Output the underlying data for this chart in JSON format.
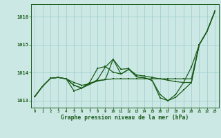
{
  "x": [
    0,
    1,
    2,
    3,
    4,
    5,
    6,
    7,
    8,
    9,
    10,
    11,
    12,
    13,
    14,
    15,
    16,
    17,
    18,
    19,
    20,
    21,
    22,
    23
  ],
  "line1": [
    1013.15,
    1013.52,
    1013.8,
    1013.83,
    1013.78,
    1013.65,
    1013.55,
    1013.6,
    1013.7,
    1013.75,
    1014.48,
    1013.95,
    1014.12,
    1013.92,
    1013.88,
    1013.83,
    1013.78,
    1013.73,
    1013.68,
    1013.65,
    1013.65,
    1015.0,
    1015.48,
    1016.2
  ],
  "line2": [
    1013.15,
    1013.52,
    1013.8,
    1013.83,
    1013.78,
    1013.55,
    1013.45,
    1013.58,
    1013.75,
    1014.2,
    1014.48,
    1014.12,
    1014.15,
    1013.85,
    1013.82,
    1013.72,
    1013.1,
    1013.0,
    1013.12,
    1013.38,
    1013.65,
    1015.0,
    1015.48,
    1016.2
  ],
  "line3": [
    1013.15,
    1013.52,
    1013.8,
    1013.83,
    1013.78,
    1013.35,
    1013.45,
    1013.65,
    1014.15,
    1014.22,
    1014.02,
    1013.95,
    1014.12,
    1013.85,
    1013.82,
    1013.72,
    1013.22,
    1013.0,
    1013.22,
    1013.65,
    1014.2,
    1015.0,
    1015.48,
    1016.2
  ],
  "line4": [
    1013.15,
    1013.52,
    1013.8,
    1013.83,
    1013.78,
    1013.55,
    1013.45,
    1013.62,
    1013.72,
    1013.75,
    1013.78,
    1013.78,
    1013.78,
    1013.78,
    1013.78,
    1013.78,
    1013.78,
    1013.78,
    1013.78,
    1013.78,
    1013.78,
    1015.0,
    1015.48,
    1016.2
  ],
  "ylim": [
    1012.75,
    1016.45
  ],
  "yticks": [
    1013,
    1014,
    1015,
    1016
  ],
  "xlabel": "Graphe pression niveau de la mer (hPa)",
  "bg_color": "#cce8e4",
  "grid_color": "#99cccc",
  "line_color": "#1a5c1a",
  "marker": "s",
  "markersize": 2.0,
  "linewidth": 0.9
}
